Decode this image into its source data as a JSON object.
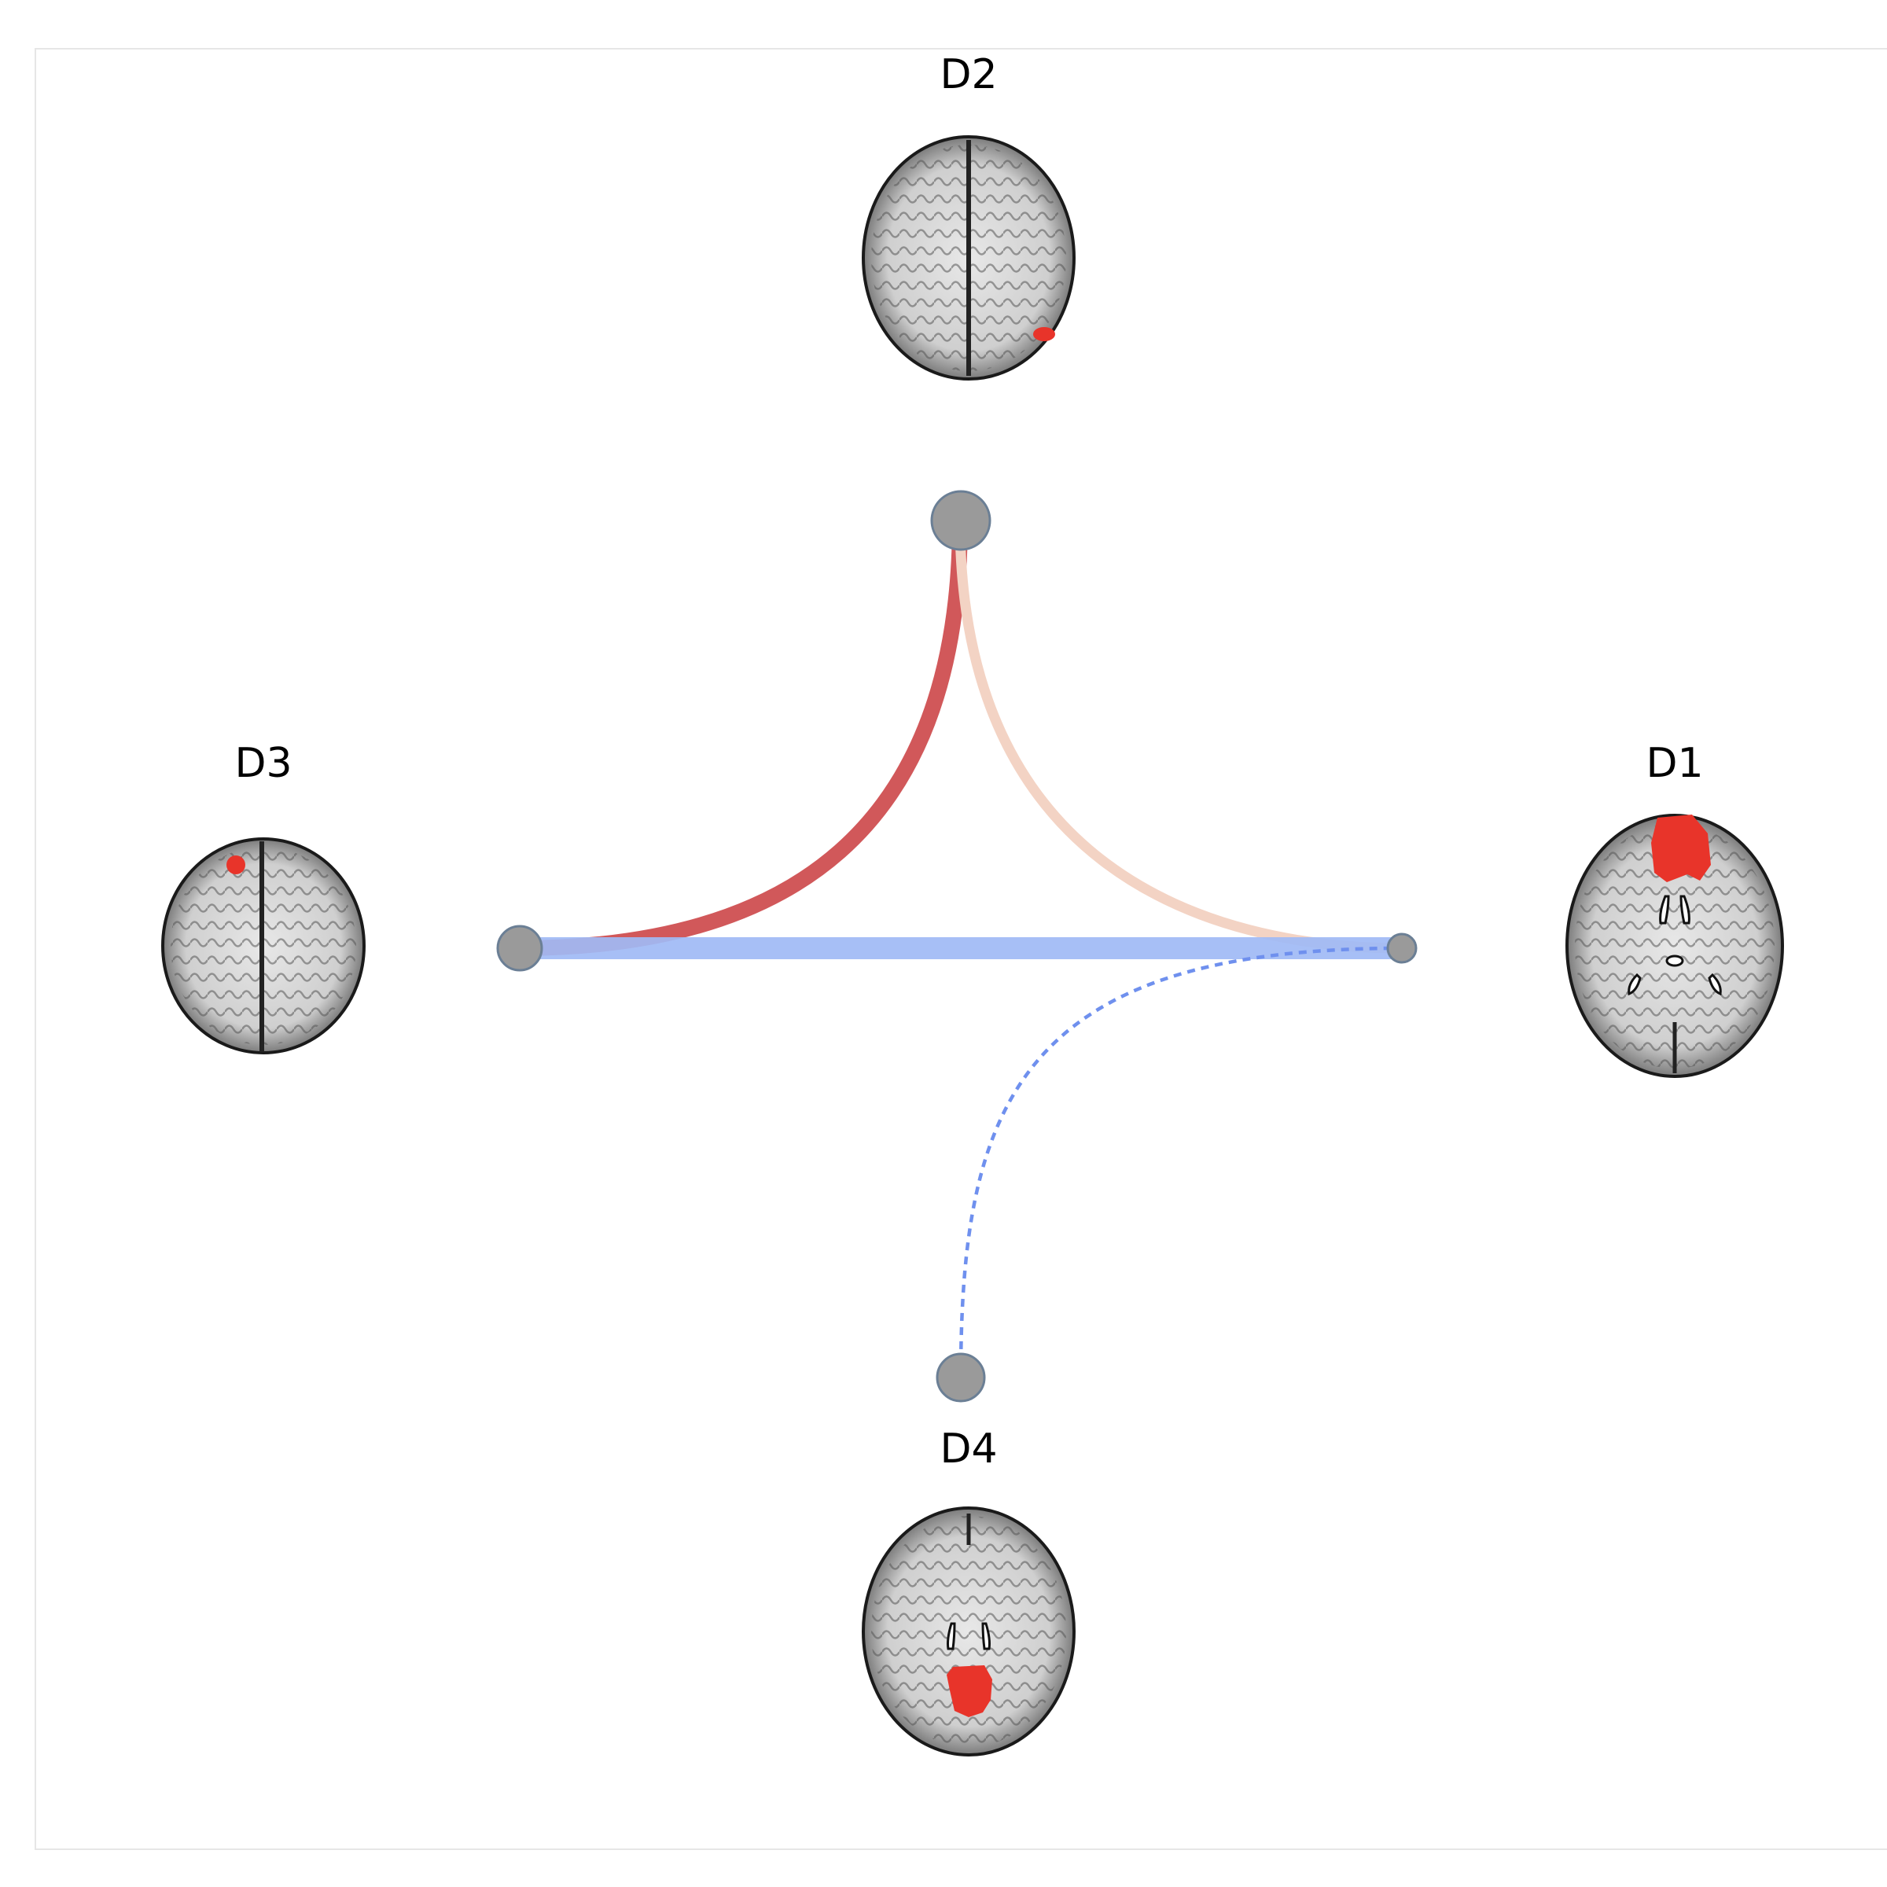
{
  "diagram": {
    "nodes": [
      {
        "id": "D1",
        "label": "D1",
        "brain_slice": "axial-ventricle-level",
        "roi": "anterior-medial"
      },
      {
        "id": "D2",
        "label": "D2",
        "brain_slice": "axial-superior",
        "roi": "right-posterior"
      },
      {
        "id": "D3",
        "label": "D3",
        "brain_slice": "axial-superior",
        "roi": "left-anterior"
      },
      {
        "id": "D4",
        "label": "D4",
        "brain_slice": "axial-ventricle-level",
        "roi": "posterior-medial"
      }
    ],
    "edges": [
      {
        "from": "D2",
        "to": "D3",
        "color": "#d1585a",
        "style": "solid",
        "strength": "strong-positive"
      },
      {
        "from": "D2",
        "to": "D1",
        "color": "#f3d3c4",
        "style": "solid",
        "strength": "weak-positive"
      },
      {
        "from": "D3",
        "to": "D1",
        "color": "#9fbaf5",
        "style": "solid",
        "strength": "strong-negative"
      },
      {
        "from": "D4",
        "to": "D1",
        "color": "#6f90ee",
        "style": "dashed",
        "strength": "weak-negative"
      }
    ],
    "colors": {
      "node_fill": "#9a9a9a",
      "node_stroke": "#6b7f95",
      "roi": "#e8342a",
      "frame": "#e6e6e6"
    }
  }
}
